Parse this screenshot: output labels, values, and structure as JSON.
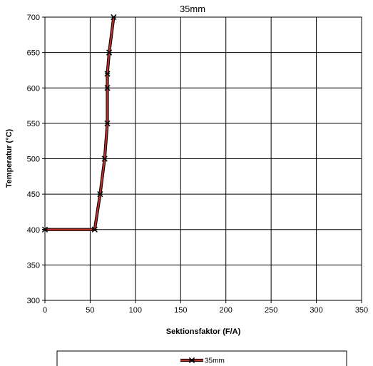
{
  "chart_data": {
    "type": "line",
    "title": "35mm",
    "xlabel": "Sektionsfaktor (F/A)",
    "ylabel": "Temperatur (°C)",
    "xlim": [
      0,
      350
    ],
    "ylim": [
      300,
      700
    ],
    "xticks": [
      0,
      50,
      100,
      150,
      200,
      250,
      300,
      350
    ],
    "yticks": [
      300,
      350,
      400,
      450,
      500,
      550,
      600,
      650,
      700
    ],
    "grid": true,
    "legend_position": "bottom",
    "series": [
      {
        "name": "35mm",
        "color": "#c0302a",
        "marker": "star-x",
        "points": [
          {
            "x": 0,
            "y": 400
          },
          {
            "x": 55,
            "y": 400
          },
          {
            "x": 61,
            "y": 450
          },
          {
            "x": 66,
            "y": 500
          },
          {
            "x": 69,
            "y": 550
          },
          {
            "x": 69,
            "y": 600
          },
          {
            "x": 69,
            "y": 620
          },
          {
            "x": 71,
            "y": 650
          },
          {
            "x": 76,
            "y": 700
          }
        ]
      }
    ]
  }
}
